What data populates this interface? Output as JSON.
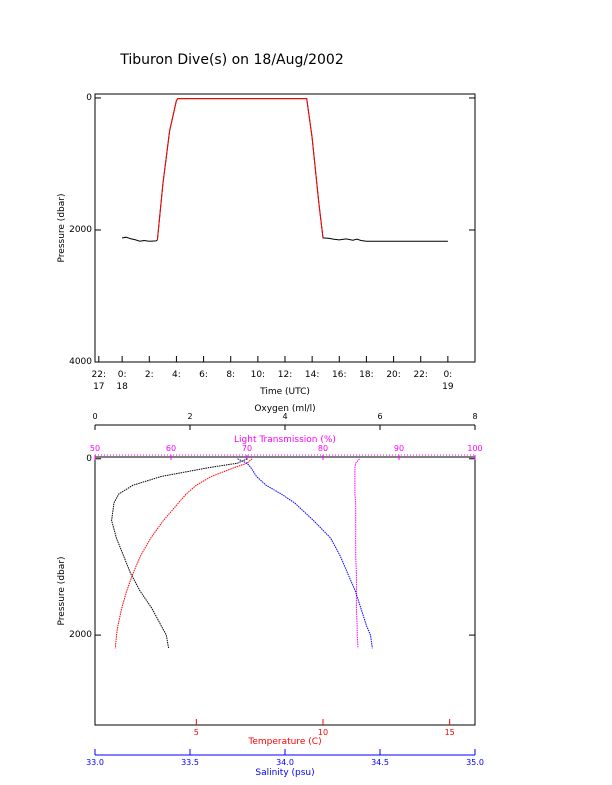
{
  "chart_data": [
    {
      "type": "line",
      "title": "Tiburon Dive(s) on 18/Aug/2002",
      "x_label": "Time (UTC)",
      "y_label": "Pressure (dbar)",
      "x": [
        0,
        0.3,
        0.6,
        1.0,
        1.3,
        1.6,
        2.0,
        2.5,
        2.6,
        3.0,
        3.5,
        4.0,
        4.1,
        6,
        8,
        10,
        12,
        13.6,
        14.0,
        14.5,
        14.8,
        15.2,
        15.6,
        16,
        16.5,
        17,
        17.3,
        17.6,
        18,
        20,
        22,
        24
      ],
      "series": [
        {
          "color": "#000000",
          "values": [
            2121,
            2110,
            2130,
            2150,
            2170,
            2160,
            2170,
            2165,
            2150,
            1300,
            500,
            40,
            10,
            10,
            10,
            10,
            10,
            10,
            600,
            1600,
            2120,
            2125,
            2140,
            2150,
            2135,
            2155,
            2140,
            2160,
            2170,
            2170,
            2170,
            2170
          ]
        },
        {
          "color": "#ff0000",
          "values": [
            null,
            null,
            null,
            null,
            null,
            null,
            null,
            null,
            2150,
            1300,
            500,
            40,
            10,
            10,
            10,
            10,
            10,
            10,
            600,
            1600,
            2120,
            null,
            null,
            null,
            null,
            null,
            null,
            null,
            null,
            null,
            null,
            null
          ]
        }
      ],
      "xlim": [
        -2,
        26
      ],
      "xticks": [
        {
          "value": -1.72,
          "label": "22:\n17"
        },
        {
          "value": 0,
          "label": "0:\n18"
        },
        {
          "value": 2,
          "label": "2:"
        },
        {
          "value": 4,
          "label": "4:"
        },
        {
          "value": 6,
          "label": "6:"
        },
        {
          "value": 8,
          "label": "8:"
        },
        {
          "value": 10,
          "label": "10:"
        },
        {
          "value": 12,
          "label": "12:"
        },
        {
          "value": 14,
          "label": "14:"
        },
        {
          "value": 16,
          "label": "16:"
        },
        {
          "value": 18,
          "label": "18:"
        },
        {
          "value": 20,
          "label": "20:"
        },
        {
          "value": 22,
          "label": "22:"
        },
        {
          "value": 24,
          "label": "0:\n19"
        }
      ],
      "ylim": [
        -60,
        4000
      ],
      "y_inverted": true,
      "yticks": [
        0,
        2000,
        4000
      ]
    },
    {
      "type": "profile",
      "y_label": "Pressure (dbar)",
      "y": [
        0,
        50,
        100,
        200,
        300,
        400,
        500,
        700,
        900,
        1100,
        1300,
        1500,
        1700,
        1900,
        2000,
        2150
      ],
      "ylim": [
        -20,
        3020
      ],
      "y_inverted": true,
      "yticks": [
        0,
        2000
      ],
      "axes": [
        {
          "label": "Oxygen (ml/l)",
          "color": "#000000",
          "lim": [
            0,
            8
          ],
          "ticks": [
            0,
            2,
            4,
            6,
            8
          ]
        },
        {
          "label": "Light Transmission (%)",
          "color": "#ff00ff",
          "lim": [
            50,
            100
          ],
          "ticks": [
            50,
            60,
            70,
            80,
            90,
            100
          ]
        },
        {
          "label": "Temperature (C)",
          "color": "#ff0000",
          "lim": [
            1,
            16
          ],
          "ticks": [
            5,
            10,
            15
          ]
        },
        {
          "label": "Salinity (psu)",
          "color": "#0000ff",
          "lim": [
            33,
            35
          ],
          "ticks": [
            {
              "value": 33,
              "label": "33.0"
            },
            {
              "value": 33.5,
              "label": "33.5"
            },
            {
              "value": 34,
              "label": "34.0"
            },
            {
              "value": 34.5,
              "label": "34.5"
            },
            {
              "value": 35,
              "label": "35.0"
            }
          ]
        }
      ],
      "series": [
        {
          "axis": 0,
          "color": "#000000",
          "values": [
            3.2,
            3.0,
            2.4,
            1.4,
            0.8,
            0.5,
            0.4,
            0.35,
            0.45,
            0.6,
            0.75,
            0.95,
            1.2,
            1.4,
            1.5,
            1.55
          ]
        },
        {
          "axis": 1,
          "color": "#ff00ff",
          "values": [
            84.8,
            84.3,
            84.2,
            84.2,
            84.2,
            84.2,
            84.3,
            84.3,
            84.3,
            84.3,
            84.4,
            84.4,
            84.4,
            84.5,
            84.5,
            84.6
          ]
        },
        {
          "axis": 2,
          "color": "#ff0000",
          "values": [
            7.2,
            7.0,
            6.5,
            5.6,
            5.0,
            4.6,
            4.3,
            3.7,
            3.2,
            2.8,
            2.5,
            2.25,
            2.05,
            1.9,
            1.85,
            1.8
          ]
        },
        {
          "axis": 3,
          "color": "#0000ff",
          "values": [
            33.75,
            33.8,
            33.82,
            33.85,
            33.9,
            33.98,
            34.05,
            34.15,
            34.24,
            34.29,
            34.33,
            34.37,
            34.4,
            34.43,
            34.45,
            34.46
          ]
        }
      ]
    }
  ]
}
